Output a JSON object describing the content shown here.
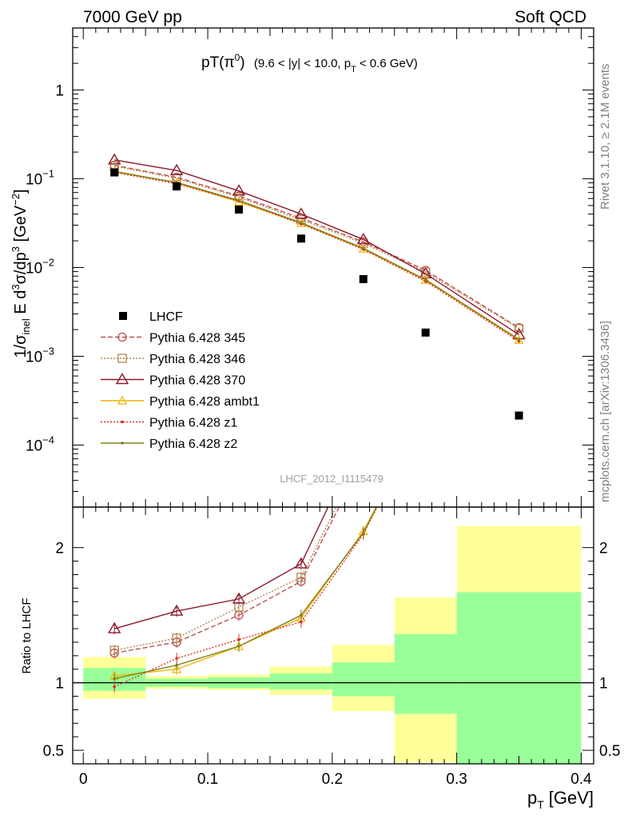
{
  "header": {
    "left": "7000 GeV pp",
    "right": "Soft QCD"
  },
  "side_labels": {
    "rivet": "Rivet 3.1.10, ≥ 2.1M events",
    "mcplots": "mcplots.cern.ch [arXiv:1306.3436]"
  },
  "chart_data": [
    {
      "type": "scatter",
      "title": "pT(π⁰) (9.6 < |y| < 10.0, p_T < 0.6 GeV)",
      "title_main": "pT(π",
      "title_sup": "0",
      "title_close": ")",
      "title_range": "(9.6 < |y| < 10.0, p",
      "title_sub": "T",
      "title_tail": "< 0.6 GeV)",
      "ylabel": "1/σ_inel E d³σ/dp³ [GeV⁻²]",
      "y_scale": "log",
      "ylim": [
        2e-05,
        5
      ],
      "xlim": [
        -0.0085,
        0.41
      ],
      "watermark": "LHCF_2012_I1115479",
      "legend_position": "bottom-left",
      "x": [
        0.025,
        0.075,
        0.125,
        0.175,
        0.225,
        0.275,
        0.35
      ],
      "data": {
        "name": "LHCF",
        "color": "#000000",
        "values": [
          0.118,
          0.082,
          0.045,
          0.0212,
          0.0074,
          0.00185,
          0.000215
        ]
      },
      "series": [
        {
          "name": "Pythia 6.428 345",
          "color": "#c0504d",
          "dash": "dashed",
          "marker": "circle",
          "values": [
            0.142,
            0.104,
            0.064,
            0.036,
            0.0195,
            0.0093,
            0.0021
          ]
        },
        {
          "name": "Pythia 6.428 346",
          "color": "#b08850",
          "dash": "dotted",
          "marker": "square",
          "values": [
            0.139,
            0.101,
            0.062,
            0.0345,
            0.0188,
            0.0089,
            0.00205
          ]
        },
        {
          "name": "Pythia 6.428 370",
          "color": "#8b1a2b",
          "dash": "solid",
          "marker": "triangle",
          "values": [
            0.163,
            0.124,
            0.073,
            0.04,
            0.0207,
            0.0085,
            0.00175
          ]
        },
        {
          "name": "Pythia 6.428 ambt1",
          "color": "#f0b400",
          "dash": "solid",
          "marker": "small-triangle",
          "values": [
            0.122,
            0.09,
            0.055,
            0.0315,
            0.0162,
            0.0072,
            0.00152
          ]
        },
        {
          "name": "Pythia 6.428 z1",
          "color": "#e03020",
          "dash": "dotted",
          "marker": "dot",
          "values": [
            0.118,
            0.088,
            0.056,
            0.031,
            0.016,
            0.007,
            0.00148
          ]
        },
        {
          "name": "Pythia 6.428 z2",
          "color": "#808020",
          "dash": "solid",
          "marker": "dot",
          "values": [
            0.12,
            0.091,
            0.057,
            0.032,
            0.0165,
            0.0073,
            0.00155
          ]
        }
      ],
      "yticks": [
        {
          "value": 1,
          "label": "1",
          "exp": ""
        },
        {
          "value": 0.1,
          "label": "10",
          "exp": "−1"
        },
        {
          "value": 0.01,
          "label": "10",
          "exp": "−2"
        },
        {
          "value": 0.001,
          "label": "10",
          "exp": "−3"
        },
        {
          "value": 0.0001,
          "label": "10",
          "exp": "−4"
        }
      ]
    },
    {
      "type": "line",
      "ylabel": "Ratio to LHCF",
      "ylim": [
        0.4,
        2.3
      ],
      "xlabel": "p_T [GeV]",
      "xlabel_main": "p",
      "xlabel_sub": "T",
      "xlabel_unit": "[GeV]",
      "xticks": [
        0,
        0.1,
        0.2,
        0.3,
        0.4
      ],
      "xtick_labels": [
        "0",
        "0.1",
        "0.2",
        "0.3",
        "0.4"
      ],
      "yticks": [
        0.5,
        1,
        2
      ],
      "ytick_labels": [
        "0.5",
        "1",
        "2"
      ],
      "bands": [
        {
          "x0": 0.0,
          "x1": 0.05,
          "green": [
            0.94,
            1.11
          ],
          "yellow": [
            0.88,
            1.19
          ]
        },
        {
          "x0": 0.05,
          "x1": 0.1,
          "green": [
            0.97,
            1.03
          ],
          "yellow": [
            0.955,
            1.05
          ]
        },
        {
          "x0": 0.1,
          "x1": 0.15,
          "green": [
            0.96,
            1.04
          ],
          "yellow": [
            0.945,
            1.06
          ]
        },
        {
          "x0": 0.15,
          "x1": 0.2,
          "green": [
            0.95,
            1.07
          ],
          "yellow": [
            0.91,
            1.12
          ]
        },
        {
          "x0": 0.2,
          "x1": 0.25,
          "green": [
            0.9,
            1.15
          ],
          "yellow": [
            0.79,
            1.28
          ]
        },
        {
          "x0": 0.25,
          "x1": 0.3,
          "green": [
            0.77,
            1.36
          ],
          "yellow": [
            0.41,
            1.63
          ]
        },
        {
          "x0": 0.3,
          "x1": 0.4,
          "green": [
            0.36,
            1.67
          ],
          "yellow": [
            0.36,
            2.16
          ]
        }
      ],
      "ratio_series": [
        {
          "name": "Pythia 6.428 345",
          "values": [
            1.22,
            1.3,
            1.5,
            1.75,
            2.65
          ]
        },
        {
          "name": "Pythia 6.428 346",
          "values": [
            1.24,
            1.33,
            1.56,
            1.78,
            2.7
          ]
        },
        {
          "name": "Pythia 6.428 370",
          "values": [
            1.4,
            1.53,
            1.62,
            1.88,
            2.85
          ]
        },
        {
          "name": "Pythia 6.428 ambt1",
          "values": [
            1.05,
            1.1,
            1.27,
            1.48,
            2.12,
            3.0
          ]
        },
        {
          "name": "Pythia 6.428 z1",
          "values": [
            0.97,
            1.18,
            1.32,
            1.45,
            2.1,
            3.0
          ]
        },
        {
          "name": "Pythia 6.428 z2",
          "values": [
            1.03,
            1.13,
            1.27,
            1.5,
            2.11,
            3.0
          ]
        }
      ]
    }
  ]
}
